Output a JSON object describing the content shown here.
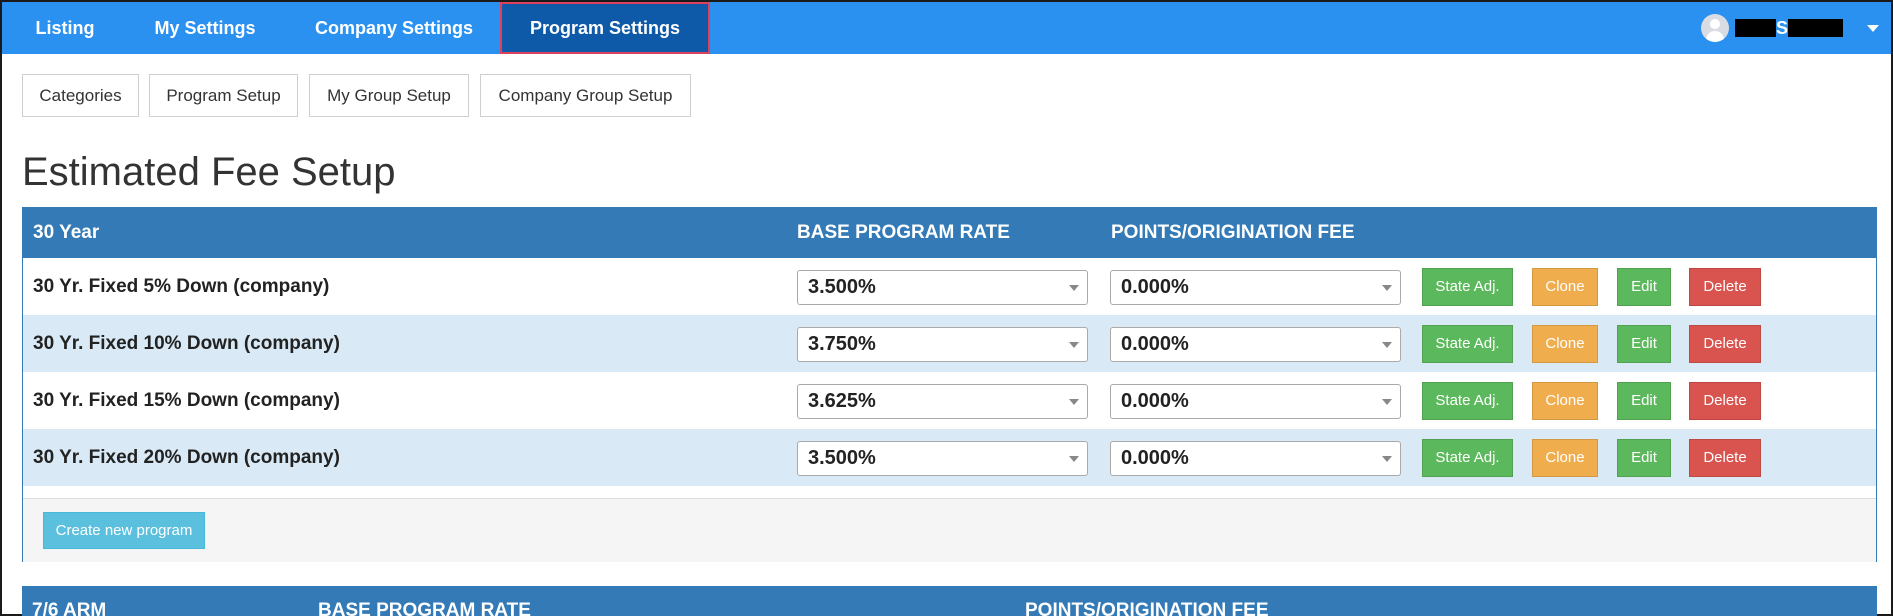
{
  "nav": {
    "items": [
      {
        "label": "Listing"
      },
      {
        "label": "My Settings"
      },
      {
        "label": "Company Settings"
      },
      {
        "label": "Program Settings",
        "active": true
      }
    ],
    "user": {
      "name_initial_1": "",
      "name_initial_2": "S"
    }
  },
  "subtabs": [
    {
      "label": "Categories"
    },
    {
      "label": "Program Setup"
    },
    {
      "label": "My Group Setup"
    },
    {
      "label": "Company Group Setup"
    }
  ],
  "page": {
    "title": "Estimated Fee Setup"
  },
  "panel1": {
    "heading": "30 Year",
    "col_rate": "BASE PROGRAM RATE",
    "col_points": "POINTS/ORIGINATION FEE",
    "rows": [
      {
        "name": "30 Yr. Fixed 5% Down (company)",
        "rate": "3.500%",
        "points": "0.000%"
      },
      {
        "name": "30 Yr. Fixed 10% Down (company)",
        "rate": "3.750%",
        "points": "0.000%"
      },
      {
        "name": "30 Yr. Fixed 15% Down (company)",
        "rate": "3.625%",
        "points": "0.000%"
      },
      {
        "name": "30 Yr. Fixed 20% Down (company)",
        "rate": "3.500%",
        "points": "0.000%"
      }
    ],
    "buttons": {
      "state_adj": "State Adj.",
      "clone": "Clone",
      "edit": "Edit",
      "delete": "Delete"
    },
    "create_label": "Create new program"
  },
  "panel2": {
    "heading": "7/6 ARM",
    "col_rate": "BASE PROGRAM RATE",
    "col_points": "POINTS/ORIGINATION FEE"
  },
  "colors": {
    "navbar": "#2b91f0",
    "nav_active": "#0f5aa8",
    "panel_header": "#337ab7",
    "row_alt": "#d9eaf6",
    "green": "#5cb85c",
    "orange": "#f0ad4e",
    "red": "#d9534f",
    "info": "#5bc0de"
  }
}
